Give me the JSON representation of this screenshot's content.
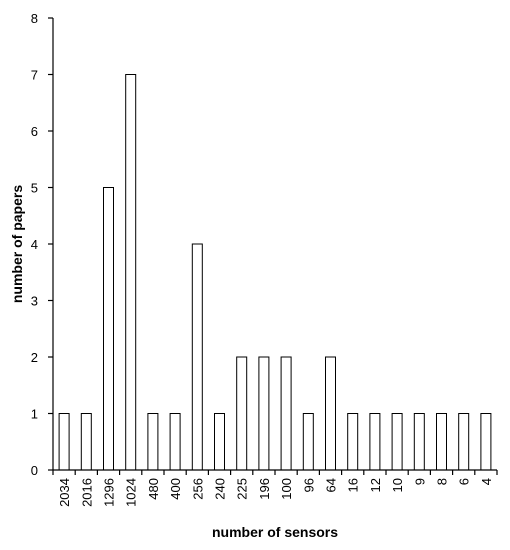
{
  "chart_data": {
    "type": "bar",
    "categories": [
      "2034",
      "2016",
      "1296",
      "1024",
      "480",
      "400",
      "256",
      "240",
      "225",
      "196",
      "100",
      "96",
      "64",
      "16",
      "12",
      "10",
      "9",
      "8",
      "6",
      "4"
    ],
    "values": [
      1,
      1,
      5,
      7,
      1,
      1,
      4,
      1,
      2,
      2,
      2,
      1,
      2,
      1,
      1,
      1,
      1,
      1,
      1,
      1
    ],
    "title": "",
    "xlabel": "number of sensors",
    "ylabel": "number of papers",
    "ylim": [
      0,
      8
    ],
    "yticks": [
      0,
      1,
      2,
      3,
      4,
      5,
      6,
      7,
      8
    ],
    "grid": false,
    "bar_fill": "#ffffff",
    "bar_stroke": "#000000"
  }
}
